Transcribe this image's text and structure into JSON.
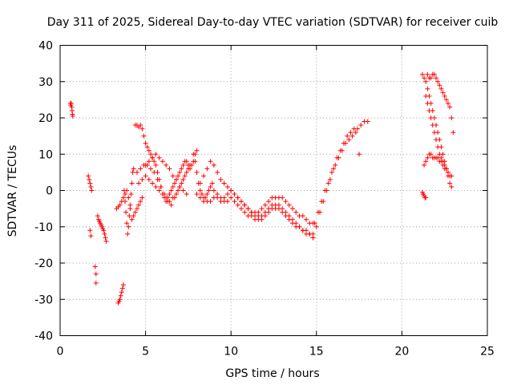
{
  "chart_data": {
    "type": "scatter",
    "title": "Day 311 of 2025, Sidereal Day-to-day VTEC variation (SDTVAR) for receiver cuib",
    "xlabel": "GPS time / hours",
    "ylabel": "SDTVAR / TECUs",
    "xlim": [
      0,
      25
    ],
    "ylim": [
      -40,
      40
    ],
    "xticks": [
      0,
      5,
      10,
      15,
      20,
      25
    ],
    "yticks": [
      -40,
      -30,
      -20,
      -10,
      0,
      10,
      20,
      30,
      40
    ],
    "grid": true,
    "marker": "plus",
    "color": "#ff0000",
    "series": [
      {
        "name": "SDTVAR",
        "x": [
          0.6,
          0.62,
          0.65,
          0.68,
          0.7,
          0.72,
          0.74
        ],
        "y": [
          24,
          23.5,
          24,
          23,
          22,
          21,
          20.5
        ]
      },
      {
        "name": "SDTVAR",
        "x": [
          1.65,
          1.7,
          1.75,
          1.8,
          1.85,
          1.75,
          1.8,
          2.05,
          2.1,
          2.1,
          2.2,
          2.25,
          2.3,
          2.35,
          2.4,
          2.45,
          2.5,
          2.55,
          2.6,
          2.65,
          2.7
        ],
        "y": [
          4,
          3,
          2,
          1,
          0,
          -11,
          -12.5,
          -21,
          -23,
          -25.5,
          -7,
          -8,
          -8.5,
          -9,
          -9.5,
          -10,
          -10.5,
          -11,
          -12,
          -13,
          -14
        ]
      },
      {
        "name": "SDTVAR",
        "x": [
          3.4,
          3.45,
          3.5,
          3.55,
          3.6,
          3.65,
          3.7,
          3.75,
          3.8,
          3.85,
          3.9,
          3.95,
          4.0,
          4.05,
          4.1,
          4.15,
          4.2,
          4.25,
          4.3
        ],
        "y": [
          -31,
          -30.5,
          -30,
          -29,
          -28,
          -27,
          -26,
          0,
          -3,
          -6,
          -9,
          -12,
          -10,
          -7,
          -4,
          -1,
          2,
          5,
          6
        ]
      },
      {
        "name": "SDTVAR",
        "x": [
          3.3,
          3.4,
          3.5,
          3.6,
          3.7,
          3.8,
          3.9,
          4.0,
          4.1,
          4.2,
          4.3,
          4.4,
          4.5,
          4.6,
          4.7,
          4.8
        ],
        "y": [
          -5,
          -4.5,
          -4,
          -3,
          -2,
          -1,
          0,
          -2,
          -5,
          -8,
          -7,
          -6,
          -5,
          -4,
          -3,
          -2
        ]
      },
      {
        "name": "SDTVAR",
        "x": [
          4.4,
          4.5,
          4.6,
          4.7,
          4.8,
          4.9,
          5.0,
          5.1,
          5.2,
          5.3,
          5.4,
          5.5,
          5.6,
          5.7,
          5.8,
          5.9,
          6.0,
          6.1,
          6.2,
          6.3,
          6.4,
          6.5,
          6.6,
          6.7,
          6.8,
          6.9,
          7.0,
          7.1,
          7.2,
          7.3,
          7.4,
          7.5,
          7.6,
          7.7,
          7.8,
          7.9,
          8.0
        ],
        "y": [
          18,
          18,
          17.5,
          18,
          17,
          15,
          13,
          12,
          11,
          10,
          9,
          8,
          7,
          5,
          3,
          1,
          -1,
          -2,
          -3,
          -2,
          -1,
          0,
          1,
          2,
          3,
          4,
          5,
          6,
          7,
          8,
          8,
          7,
          6,
          7,
          8,
          10,
          11
        ]
      },
      {
        "name": "SDTVAR",
        "x": [
          4.5,
          4.7,
          4.9,
          5.1,
          5.3,
          5.5,
          5.7,
          5.9,
          6.1,
          6.3,
          6.5,
          6.7,
          6.9,
          7.1,
          7.3,
          7.5
        ],
        "y": [
          5,
          6,
          7,
          7,
          6,
          5,
          3,
          1,
          -1,
          -3,
          -4,
          -2,
          0,
          2,
          4,
          6
        ]
      },
      {
        "name": "SDTVAR",
        "x": [
          4.6,
          4.8,
          5.0,
          5.2,
          5.4,
          5.6,
          5.8,
          6.0,
          6.2,
          6.4,
          6.6,
          6.8,
          7.0,
          7.2,
          7.4,
          7.6
        ],
        "y": [
          2,
          3,
          4,
          3,
          2,
          1,
          0,
          -1,
          -2,
          -3,
          -2,
          -1,
          1,
          3,
          5,
          7
        ]
      },
      {
        "name": "SDTVAR",
        "x": [
          5.0,
          5.2,
          5.4,
          5.6,
          5.8,
          6.0,
          6.2,
          6.4,
          6.6,
          6.8,
          7.0,
          7.2,
          7.4
        ],
        "y": [
          7,
          8,
          9,
          10,
          9,
          8,
          7,
          6,
          4,
          3,
          1,
          0,
          -1
        ]
      },
      {
        "name": "SDTVAR",
        "x": [
          7.8,
          7.9,
          8.0,
          8.1,
          8.2,
          8.3,
          8.4,
          8.5,
          8.6,
          8.7,
          8.8,
          8.9,
          9.0,
          9.2,
          9.4,
          9.6,
          9.8,
          10.0,
          10.2,
          10.4,
          10.6,
          10.8,
          11.0,
          11.2,
          11.4,
          11.6,
          11.8,
          12.0,
          12.2,
          12.4,
          12.6,
          12.8,
          13.0,
          13.2,
          13.4,
          13.6,
          13.8,
          14.0,
          14.2,
          14.4,
          14.6,
          14.8
        ],
        "y": [
          10,
          8,
          5,
          2,
          0,
          -1,
          -2,
          -2,
          -1,
          0,
          1,
          2,
          0,
          -1,
          -2,
          -2,
          -1,
          0,
          -1,
          -2,
          -3,
          -4,
          -5,
          -6,
          -6,
          -6,
          -5,
          -4,
          -3,
          -2,
          -2,
          -2,
          -2,
          -3,
          -4,
          -5,
          -6,
          -7,
          -7,
          -8,
          -9,
          -9
        ]
      },
      {
        "name": "SDTVAR",
        "x": [
          8.0,
          8.2,
          8.4,
          8.6,
          8.8,
          9.0,
          9.2,
          9.4,
          9.6,
          9.8,
          10.0,
          10.2,
          10.4,
          10.6,
          10.8,
          11.0,
          11.2,
          11.4,
          11.6,
          11.8,
          12.0,
          12.2,
          12.4,
          12.6,
          12.8,
          13.0,
          13.2,
          13.4,
          13.6,
          13.8,
          14.0,
          14.2,
          14.4,
          14.6,
          14.8
        ],
        "y": [
          -1,
          -2,
          -3,
          -3,
          -3,
          -2,
          -2,
          -3,
          -3,
          -3,
          -2,
          -3,
          -4,
          -5,
          -6,
          -7,
          -7,
          -8,
          -8,
          -8,
          -7,
          -6,
          -5,
          -5,
          -5,
          -6,
          -7,
          -8,
          -9,
          -10,
          -10,
          -11,
          -12,
          -12,
          -13
        ]
      },
      {
        "name": "SDTVAR",
        "x": [
          8.2,
          8.4,
          8.6,
          8.8,
          9.0,
          9.2,
          9.4,
          9.6,
          9.8,
          10.0,
          10.2,
          10.4,
          10.6,
          10.8,
          11.0,
          11.2,
          11.4,
          11.6,
          11.8,
          12.0,
          12.2,
          12.4,
          12.6,
          12.8,
          13.0,
          13.2,
          13.4,
          13.6,
          13.8,
          14.0,
          14.2,
          14.4,
          14.6,
          14.8
        ],
        "y": [
          2,
          4,
          6,
          8,
          7,
          5,
          3,
          2,
          1,
          0,
          -1,
          -2,
          -3,
          -4,
          -5,
          -6,
          -7,
          -7,
          -7,
          -6,
          -5,
          -4,
          -4,
          -4,
          -5,
          -6,
          -7,
          -8,
          -9,
          -10,
          -11,
          -11,
          -12,
          -12
        ]
      },
      {
        "name": "SDTVAR",
        "x": [
          14.8,
          15.0,
          15.2,
          15.4,
          15.6,
          15.8,
          16.0,
          16.2,
          16.4,
          16.6,
          16.8,
          17.0,
          17.2,
          17.4,
          17.6,
          17.8,
          18.0
        ],
        "y": [
          -13,
          -10,
          -6,
          -3,
          0,
          3,
          6,
          9,
          11,
          13,
          15,
          16,
          17,
          17,
          18,
          19,
          19
        ]
      },
      {
        "name": "SDTVAR",
        "x": [
          14.9,
          15.1,
          15.3,
          15.5,
          15.7,
          15.9,
          16.1,
          16.3,
          16.5,
          16.7,
          16.9,
          17.1,
          17.3,
          17.5
        ],
        "y": [
          -9,
          -6,
          -3,
          0,
          2,
          5,
          7,
          9,
          11,
          13,
          14,
          15,
          16,
          10
        ]
      },
      {
        "name": "SDTVAR",
        "x": [
          21.2,
          21.25,
          21.3,
          21.35,
          21.4
        ],
        "y": [
          -0.5,
          -1,
          -1.5,
          -2,
          -2
        ]
      },
      {
        "name": "SDTVAR",
        "x": [
          21.2,
          21.3,
          21.4,
          21.5,
          21.6,
          21.7,
          21.8,
          21.9,
          22.0,
          22.1,
          22.2,
          22.3,
          22.4,
          22.5,
          22.6,
          22.7,
          22.8,
          22.9
        ],
        "y": [
          32,
          31,
          30,
          28,
          26,
          24,
          22,
          20,
          18,
          16,
          14,
          12,
          10,
          8,
          6,
          4,
          2,
          1
        ]
      },
      {
        "name": "SDTVAR",
        "x": [
          21.5,
          21.6,
          21.7,
          21.8,
          21.9,
          22.0,
          22.1,
          22.2,
          22.3,
          22.4,
          22.5,
          22.6,
          22.7,
          22.8,
          22.9,
          23.0
        ],
        "y": [
          32,
          31,
          31,
          32,
          32,
          31,
          30,
          29,
          28,
          27,
          26,
          25,
          24,
          23,
          20,
          16
        ]
      },
      {
        "name": "SDTVAR",
        "x": [
          21.3,
          21.4,
          21.5,
          21.6,
          21.7,
          21.8,
          21.9,
          22.0,
          22.1,
          22.2,
          22.3,
          22.4,
          22.5,
          22.6,
          22.7,
          22.8,
          22.9
        ],
        "y": [
          7,
          8,
          9,
          10,
          10,
          9,
          9,
          9,
          9,
          8,
          8,
          7,
          6,
          6,
          5,
          4,
          4
        ]
      },
      {
        "name": "SDTVAR",
        "x": [
          21.4,
          21.5,
          21.6,
          21.7,
          21.8,
          21.9,
          22.0,
          22.1,
          22.2,
          22.3,
          22.4,
          22.5,
          22.6,
          22.7
        ],
        "y": [
          26,
          24,
          22,
          20,
          18,
          16,
          14,
          12,
          10,
          9,
          8,
          7,
          6,
          5
        ]
      }
    ]
  }
}
